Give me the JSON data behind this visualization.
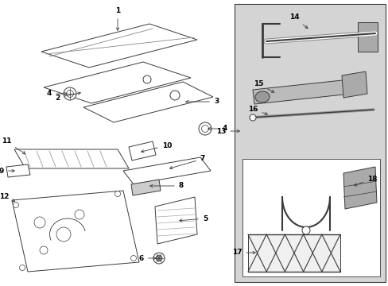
{
  "bg_color": "#ffffff",
  "lc": "#3a3a3a",
  "lc2": "#555555",
  "panel_fill": "#d8d8d8",
  "panel_fill2": "#c8c8c8",
  "white": "#ffffff",
  "fs": 6.5,
  "fs_small": 5.5,
  "lw": 0.7,
  "fig_w": 4.89,
  "fig_h": 3.6
}
